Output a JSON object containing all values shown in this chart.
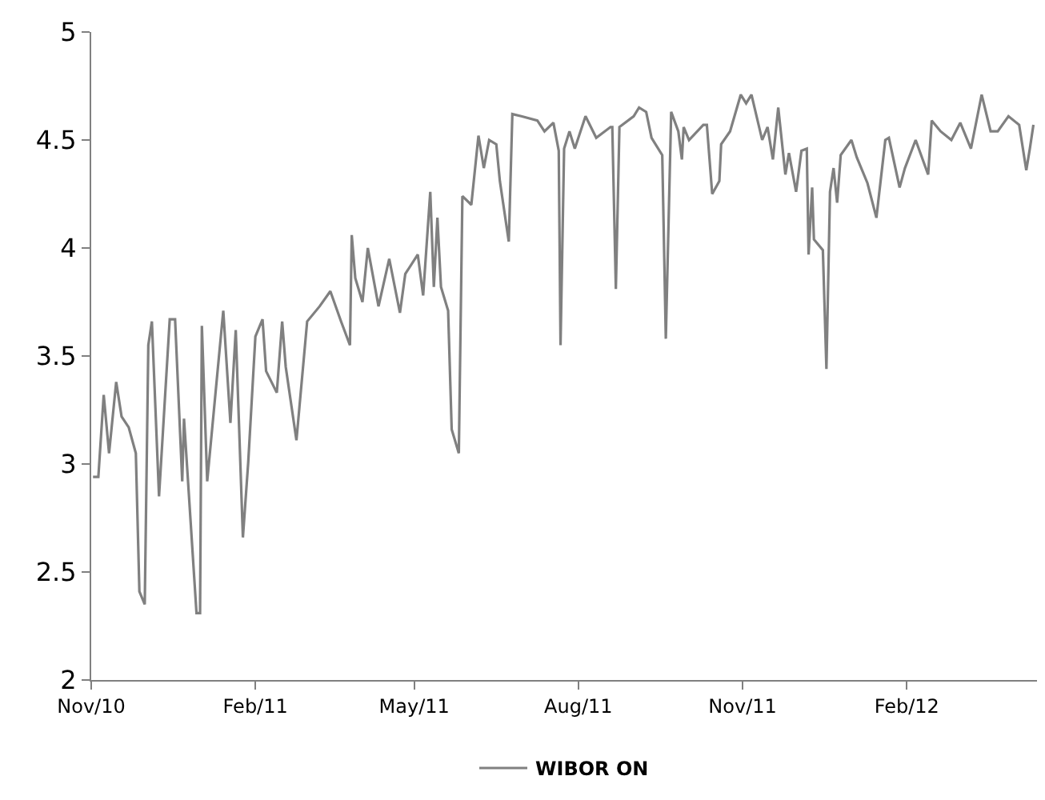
{
  "chart_data": {
    "type": "line",
    "x": [
      "2010-11-02",
      "2010-11-05",
      "2010-11-08",
      "2010-11-11",
      "2010-11-15",
      "2010-11-18",
      "2010-11-22",
      "2010-11-26",
      "2010-11-28",
      "2010-12-01",
      "2010-12-03",
      "2010-12-05",
      "2010-12-09",
      "2010-12-15",
      "2010-12-18",
      "2010-12-22",
      "2010-12-23",
      "2010-12-30",
      "2011-01-01",
      "2011-01-02",
      "2011-01-05",
      "2011-01-14",
      "2011-01-18",
      "2011-01-21",
      "2011-01-25",
      "2011-01-28",
      "2011-02-01",
      "2011-02-05",
      "2011-02-07",
      "2011-02-13",
      "2011-02-16",
      "2011-02-18",
      "2011-02-24",
      "2011-03-02",
      "2011-03-09",
      "2011-03-15",
      "2011-03-21",
      "2011-03-26",
      "2011-03-27",
      "2011-03-29",
      "2011-04-02",
      "2011-04-05",
      "2011-04-11",
      "2011-04-17",
      "2011-04-23",
      "2011-04-26",
      "2011-05-03",
      "2011-05-06",
      "2011-05-10",
      "2011-05-12",
      "2011-05-14",
      "2011-05-16",
      "2011-05-20",
      "2011-05-22",
      "2011-05-26",
      "2011-05-28",
      "2011-06-02",
      "2011-06-06",
      "2011-06-09",
      "2011-06-12",
      "2011-06-16",
      "2011-06-18",
      "2011-06-23",
      "2011-06-25",
      "2011-06-30",
      "2011-07-09",
      "2011-07-13",
      "2011-07-18",
      "2011-07-21",
      "2011-07-22",
      "2011-07-24",
      "2011-07-27",
      "2011-07-30",
      "2011-08-05",
      "2011-08-11",
      "2011-08-19",
      "2011-08-20",
      "2011-08-22",
      "2011-08-24",
      "2011-09-01",
      "2011-09-04",
      "2011-09-08",
      "2011-09-11",
      "2011-09-17",
      "2011-09-19",
      "2011-09-22",
      "2011-09-26",
      "2011-09-28",
      "2011-09-29",
      "2011-10-02",
      "2011-10-10",
      "2011-10-12",
      "2011-10-15",
      "2011-10-19",
      "2011-10-20",
      "2011-10-25",
      "2011-10-31",
      "2011-11-03",
      "2011-11-06",
      "2011-11-12",
      "2011-11-15",
      "2011-11-18",
      "2011-11-21",
      "2011-11-25",
      "2011-11-27",
      "2011-12-01",
      "2011-12-04",
      "2011-12-07",
      "2011-12-08",
      "2011-12-10",
      "2011-12-11",
      "2011-12-16",
      "2011-12-18",
      "2011-12-20",
      "2011-12-22",
      "2011-12-24",
      "2011-12-26",
      "2012-01-01",
      "2012-01-04",
      "2012-01-10",
      "2012-01-15",
      "2012-01-20",
      "2012-01-22",
      "2012-01-28",
      "2012-01-31",
      "2012-02-06",
      "2012-02-13",
      "2012-02-15",
      "2012-02-20",
      "2012-02-26",
      "2012-03-02",
      "2012-03-08",
      "2012-03-14",
      "2012-03-19",
      "2012-03-23",
      "2012-03-29",
      "2012-04-04",
      "2012-04-08",
      "2012-04-10",
      "2012-04-12"
    ],
    "series": [
      {
        "name": "WIBOR ON",
        "color": "#808080",
        "values": [
          2.94,
          2.94,
          3.32,
          3.05,
          3.38,
          3.22,
          3.17,
          3.05,
          2.41,
          2.35,
          3.55,
          3.66,
          2.85,
          3.67,
          3.67,
          2.92,
          3.21,
          2.31,
          2.31,
          3.64,
          2.92,
          3.71,
          3.19,
          3.62,
          2.66,
          3.01,
          3.59,
          3.67,
          3.43,
          3.33,
          3.66,
          3.45,
          3.11,
          3.66,
          3.73,
          3.8,
          3.66,
          3.55,
          4.06,
          3.86,
          3.75,
          4.0,
          3.73,
          3.95,
          3.7,
          3.88,
          3.97,
          3.78,
          4.26,
          3.82,
          4.14,
          3.82,
          3.71,
          3.16,
          3.05,
          4.24,
          4.2,
          4.52,
          4.37,
          4.5,
          4.48,
          4.31,
          4.03,
          4.62,
          4.61,
          4.59,
          4.54,
          4.58,
          4.45,
          3.55,
          4.46,
          4.54,
          4.46,
          4.61,
          4.51,
          4.56,
          4.56,
          3.81,
          4.56,
          4.61,
          4.65,
          4.63,
          4.51,
          4.43,
          3.58,
          4.63,
          4.54,
          4.41,
          4.56,
          4.5,
          4.57,
          4.57,
          4.25,
          4.31,
          4.48,
          4.54,
          4.71,
          4.67,
          4.71,
          4.5,
          4.56,
          4.41,
          4.65,
          4.34,
          4.44,
          4.26,
          4.45,
          4.46,
          3.97,
          4.28,
          4.04,
          3.99,
          3.44,
          4.26,
          4.37,
          4.21,
          4.43,
          4.5,
          4.42,
          4.3,
          4.14,
          4.5,
          4.51,
          4.28,
          4.37,
          4.5,
          4.34,
          4.59,
          4.54,
          4.5,
          4.58,
          4.46,
          4.71,
          4.54,
          4.54,
          4.61,
          4.57,
          4.36,
          4.46,
          4.57
        ]
      }
    ],
    "xlim": [
      "2010-11-01",
      "2012-04-14"
    ],
    "xticks": [
      {
        "value": "2010-11-01",
        "label": "Nov/10"
      },
      {
        "value": "2011-02-01",
        "label": "Feb/11"
      },
      {
        "value": "2011-05-01",
        "label": "May/11"
      },
      {
        "value": "2011-08-01",
        "label": "Aug/11"
      },
      {
        "value": "2011-11-01",
        "label": "Nov/11"
      },
      {
        "value": "2012-02-01",
        "label": "Feb/12"
      }
    ],
    "ylim": [
      2,
      5
    ],
    "yticks": [
      2,
      2.5,
      3,
      3.5,
      4,
      4.5,
      5
    ],
    "legend": "bottom",
    "marker": "none",
    "line_style": "solid"
  }
}
